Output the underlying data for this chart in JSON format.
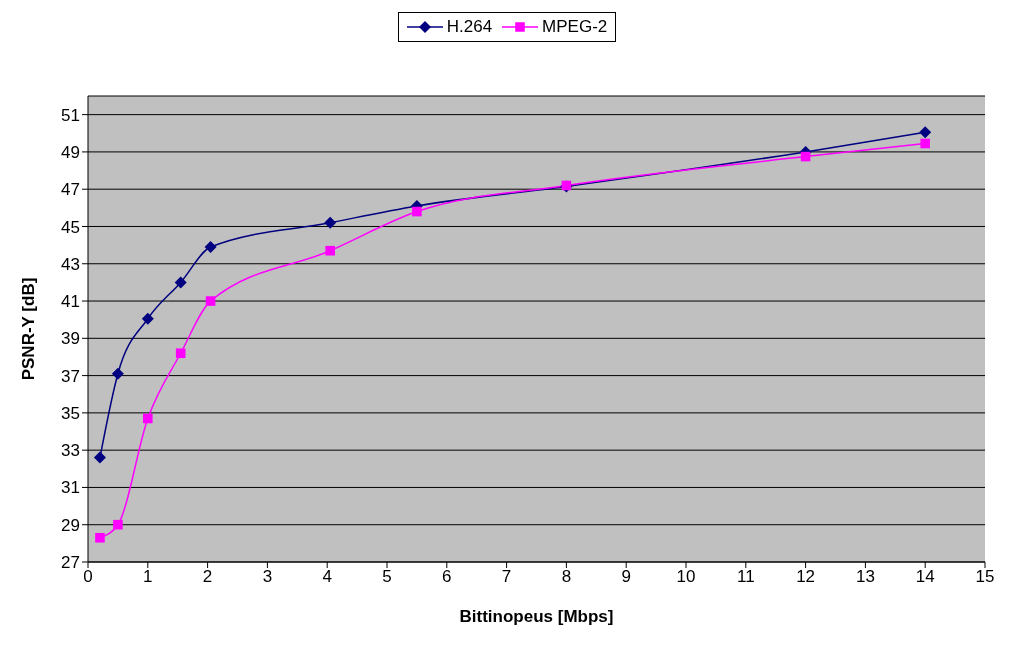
{
  "chart_data": {
    "type": "line",
    "xlabel": "Bittinopeus [Mbps]",
    "ylabel": "PSNR-Y [dB]",
    "x": [
      0.2,
      0.5,
      1,
      1.55,
      2.05,
      4.05,
      5.5,
      8,
      12,
      14
    ],
    "series": [
      {
        "name": "H.264",
        "color": "#000080",
        "marker": "diamond",
        "values": [
          32.6,
          37.1,
          40.05,
          42.0,
          43.9,
          45.2,
          46.1,
          47.15,
          49.0,
          50.05
        ]
      },
      {
        "name": "MPEG-2",
        "color": "#ff00ff",
        "marker": "square",
        "values": [
          28.3,
          29.0,
          34.7,
          38.2,
          41.0,
          43.7,
          45.8,
          47.2,
          48.75,
          49.45
        ]
      }
    ],
    "xlim": [
      0,
      15
    ],
    "xticks": [
      0,
      1,
      2,
      3,
      4,
      5,
      6,
      7,
      8,
      9,
      10,
      11,
      12,
      13,
      14,
      15
    ],
    "ylim": [
      27,
      52
    ],
    "yticks": [
      27,
      29,
      31,
      33,
      35,
      37,
      39,
      41,
      43,
      45,
      47,
      49,
      51
    ],
    "grid": "y",
    "legend": "top",
    "line_style": "solid"
  }
}
